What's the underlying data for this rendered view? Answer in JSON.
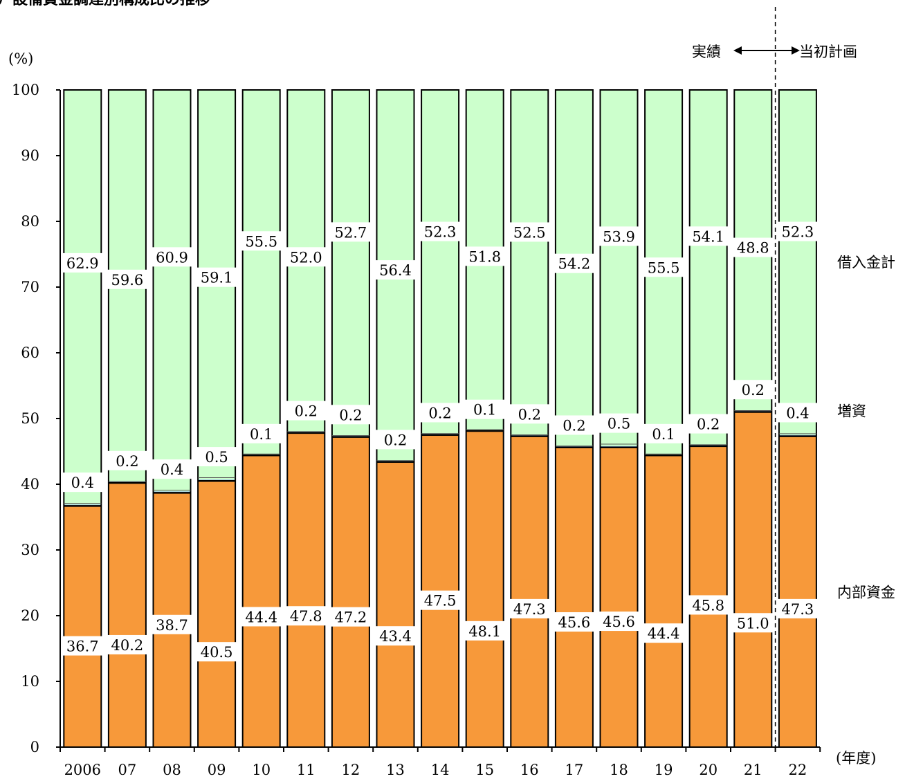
{
  "chart_data": {
    "type": "bar",
    "stacked": true,
    "title": "）設備資金調達別構成比の推移",
    "ylabel": "(%)",
    "xlabel": "(年度)",
    "ylim": [
      0,
      100
    ],
    "yticks": [
      "0",
      "10",
      "20",
      "30",
      "40",
      "50",
      "60",
      "70",
      "80",
      "90",
      "100"
    ],
    "categories": [
      "2006",
      "07",
      "08",
      "09",
      "10",
      "11",
      "12",
      "13",
      "14",
      "15",
      "16",
      "17",
      "18",
      "19",
      "20",
      "21",
      "22"
    ],
    "series": [
      {
        "name": "内部資金",
        "color": "#f7993a",
        "values": [
          36.7,
          40.2,
          38.7,
          40.5,
          44.4,
          47.8,
          47.2,
          43.4,
          47.5,
          48.1,
          47.3,
          45.6,
          45.6,
          44.4,
          45.8,
          51.0,
          47.3
        ],
        "labels": [
          "36.7",
          "40.2",
          "38.7",
          "40.5",
          "44.4",
          "47.8",
          "47.2",
          "43.4",
          "47.5",
          "48.1",
          "47.3",
          "45.6",
          "45.6",
          "44.4",
          "45.8",
          "51.0",
          "47.3"
        ]
      },
      {
        "name": "増資",
        "color": "#9dc3e6",
        "values": [
          0.4,
          0.2,
          0.4,
          0.5,
          0.1,
          0.2,
          0.2,
          0.2,
          0.2,
          0.1,
          0.2,
          0.2,
          0.5,
          0.1,
          0.2,
          0.2,
          0.4
        ],
        "labels": [
          "0.4",
          "0.2",
          "0.4",
          "0.5",
          "0.1",
          "0.2",
          "0.2",
          "0.2",
          "0.2",
          "0.1",
          "0.2",
          "0.2",
          "0.5",
          "0.1",
          "0.2",
          "0.2",
          "0.4"
        ]
      },
      {
        "name": "借入金計",
        "color": "#ccffcc",
        "values": [
          62.9,
          59.6,
          60.9,
          59.1,
          55.5,
          52.0,
          52.7,
          56.4,
          52.3,
          51.8,
          52.5,
          54.2,
          53.9,
          55.5,
          54.1,
          48.8,
          52.3
        ],
        "labels": [
          "62.9",
          "59.6",
          "60.9",
          "59.1",
          "55.5",
          "52.0",
          "52.7",
          "56.4",
          "52.3",
          "51.8",
          "52.5",
          "54.2",
          "53.9",
          "55.5",
          "54.1",
          "48.8",
          "52.3"
        ]
      }
    ],
    "annotations": {
      "actual": "実績",
      "plan": "当初計画"
    },
    "divider_after_category": "21",
    "grid": false,
    "legend": "right, labels aligned with each stack segment"
  }
}
